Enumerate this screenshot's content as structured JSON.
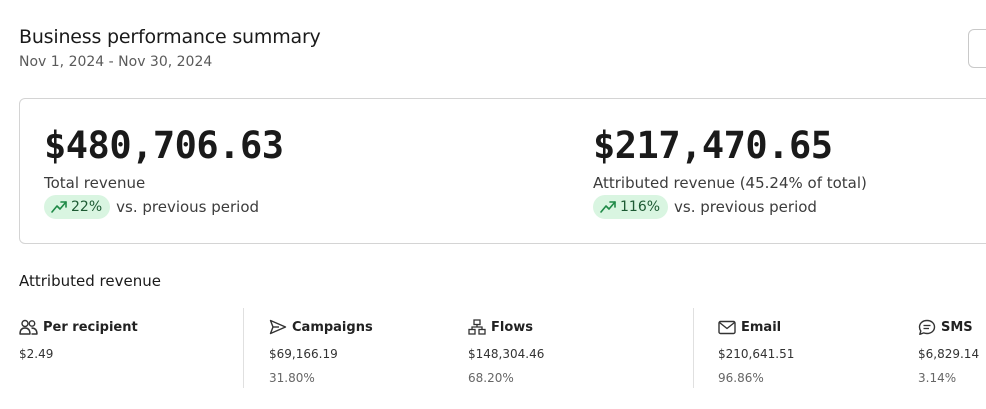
{
  "header": {
    "title": "Business performance summary",
    "date_range": "Nov 1, 2024 - Nov 30, 2024"
  },
  "summary": {
    "total": {
      "value": "$480,706.63",
      "label": "Total revenue",
      "trend_percent": "22%",
      "trend_text": "vs. previous period"
    },
    "attributed": {
      "value": "$217,470.65",
      "label": "Attributed revenue (45.24% of total)",
      "trend_percent": "116%",
      "trend_text": "vs. previous period"
    }
  },
  "attributed_section": {
    "heading": "Attributed revenue",
    "stats": [
      {
        "title": "Per recipient",
        "icon": "people-icon",
        "value": "$2.49",
        "percent": ""
      },
      {
        "title": "Campaigns",
        "icon": "send-icon",
        "value": "$69,166.19",
        "percent": "31.80%"
      },
      {
        "title": "Flows",
        "icon": "flow-icon",
        "value": "$148,304.46",
        "percent": "68.20%"
      },
      {
        "title": "Email",
        "icon": "mail-icon",
        "value": "$210,641.51",
        "percent": "96.86%"
      },
      {
        "title": "SMS",
        "icon": "sms-icon",
        "value": "$6,829.14",
        "percent": "3.14%"
      }
    ]
  },
  "colors": {
    "trend_pill_bg": "#d9f5e1",
    "trend_pill_text": "#1d5a33",
    "trend_arrow": "#1f8a47"
  }
}
